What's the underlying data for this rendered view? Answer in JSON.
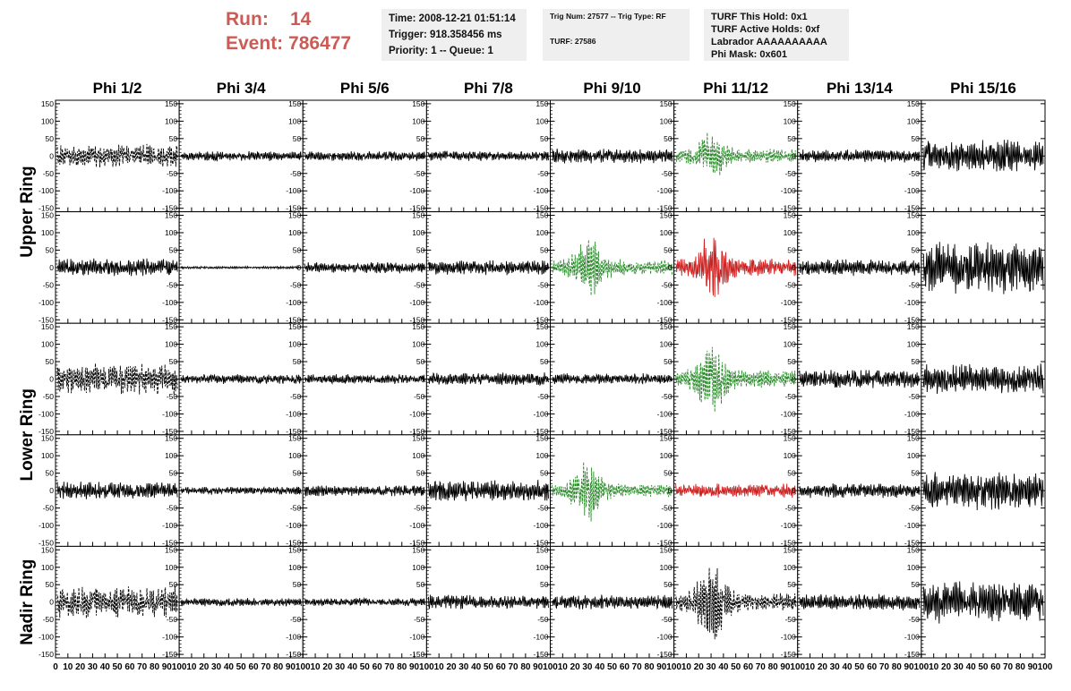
{
  "header": {
    "run_label": "Run:",
    "run_value": "14",
    "event_label": "Event:",
    "event_value": "786477",
    "time": "Time: 2008-12-21 01:51:14",
    "trigger": "Trigger: 918.358456 ms",
    "priority": "Priority: 1 -- Queue: 1",
    "trig_num": "Trig Num: 27577 -- Trig Type: RF",
    "turf": "TURF: 27586",
    "turf_this_hold": "TURF This Hold: 0x1",
    "turf_active_holds": "TURF Active Holds: 0xf",
    "labrador": "Labrador AAAAAAAAAA",
    "phi_mask": "Phi Mask: 0x601"
  },
  "colors": {
    "header_accent": "#cc5a55",
    "trace_default": "#000000",
    "trace_green": "#2a8a2a",
    "trace_red": "#cc2222"
  },
  "chart_data": {
    "type": "line",
    "columns": [
      "Phi 1/2",
      "Phi 3/4",
      "Phi 5/6",
      "Phi 7/8",
      "Phi 9/10",
      "Phi 11/12",
      "Phi 13/14",
      "Phi 15/16"
    ],
    "row_groups": [
      "Upper Ring",
      "Lower Ring",
      "Nadir Ring"
    ],
    "ylim": [
      -160,
      160
    ],
    "xlim": [
      0,
      100
    ],
    "yticks": [
      -150,
      -100,
      -50,
      0,
      50,
      100,
      150
    ],
    "ytick_labels": [
      "-150",
      "-100",
      "-50",
      "0",
      "50",
      "100",
      "150"
    ],
    "xtick_labels_first": [
      "0",
      "10",
      "20",
      "30",
      "40",
      "50",
      "60",
      "70",
      "80",
      "90",
      "100"
    ],
    "xtick_labels_rest": [
      "10",
      "20",
      "30",
      "40",
      "50",
      "60",
      "70",
      "80",
      "90",
      "100"
    ],
    "xticks": [
      0,
      10,
      20,
      30,
      40,
      50,
      60,
      70,
      80,
      90,
      100
    ],
    "panels": [
      [
        {
          "amp": 30,
          "style": "dashed",
          "color": "black",
          "burst": 0,
          "seed": 11
        },
        {
          "amp": 12,
          "style": "solid",
          "color": "black",
          "burst": 0,
          "seed": 12
        },
        {
          "amp": 12,
          "style": "solid",
          "color": "black",
          "burst": 0,
          "seed": 13
        },
        {
          "amp": 12,
          "style": "solid",
          "color": "black",
          "burst": 0,
          "seed": 14
        },
        {
          "amp": 18,
          "style": "solid",
          "color": "black",
          "burst": 0,
          "seed": 15
        },
        {
          "amp": 18,
          "style": "dashed",
          "color": "green",
          "burst": 45,
          "seed": 16
        },
        {
          "amp": 16,
          "style": "solid",
          "color": "black",
          "burst": 0,
          "seed": 17
        },
        {
          "amp": 40,
          "style": "solid",
          "color": "black",
          "burst": 0,
          "seed": 18
        }
      ],
      [
        {
          "amp": 22,
          "style": "solid",
          "color": "black",
          "burst": 0,
          "seed": 21
        },
        {
          "amp": 3,
          "style": "solid",
          "color": "black",
          "burst": 0,
          "seed": 22
        },
        {
          "amp": 14,
          "style": "solid",
          "color": "black",
          "burst": 0,
          "seed": 23
        },
        {
          "amp": 18,
          "style": "solid",
          "color": "black",
          "burst": 0,
          "seed": 24
        },
        {
          "amp": 20,
          "style": "dashed",
          "color": "green",
          "burst": 60,
          "seed": 25
        },
        {
          "amp": 22,
          "style": "solid",
          "color": "red",
          "burst": 70,
          "seed": 26
        },
        {
          "amp": 20,
          "style": "solid",
          "color": "black",
          "burst": 0,
          "seed": 27
        },
        {
          "amp": 65,
          "style": "solid",
          "color": "black",
          "burst": 0,
          "seed": 28
        }
      ],
      [
        {
          "amp": 38,
          "style": "dashed",
          "color": "black",
          "burst": 0,
          "seed": 31
        },
        {
          "amp": 12,
          "style": "solid",
          "color": "black",
          "burst": 0,
          "seed": 32
        },
        {
          "amp": 12,
          "style": "solid",
          "color": "black",
          "burst": 0,
          "seed": 33
        },
        {
          "amp": 16,
          "style": "solid",
          "color": "black",
          "burst": 0,
          "seed": 34
        },
        {
          "amp": 14,
          "style": "solid",
          "color": "black",
          "burst": 0,
          "seed": 35
        },
        {
          "amp": 22,
          "style": "dashed",
          "color": "green",
          "burst": 80,
          "seed": 36
        },
        {
          "amp": 22,
          "style": "solid",
          "color": "black",
          "burst": 0,
          "seed": 37
        },
        {
          "amp": 38,
          "style": "solid",
          "color": "black",
          "burst": 0,
          "seed": 38
        }
      ],
      [
        {
          "amp": 22,
          "style": "solid",
          "color": "black",
          "burst": 0,
          "seed": 41
        },
        {
          "amp": 10,
          "style": "solid",
          "color": "black",
          "burst": 0,
          "seed": 42
        },
        {
          "amp": 14,
          "style": "solid",
          "color": "black",
          "burst": 0,
          "seed": 43
        },
        {
          "amp": 26,
          "style": "solid",
          "color": "black",
          "burst": 0,
          "seed": 44
        },
        {
          "amp": 16,
          "style": "dashed",
          "color": "green",
          "burst": 70,
          "seed": 45
        },
        {
          "amp": 18,
          "style": "solid",
          "color": "red",
          "burst": 0,
          "seed": 46
        },
        {
          "amp": 18,
          "style": "solid",
          "color": "black",
          "burst": 0,
          "seed": 47
        },
        {
          "amp": 48,
          "style": "solid",
          "color": "black",
          "burst": 0,
          "seed": 48
        }
      ],
      [
        {
          "amp": 40,
          "style": "dashed",
          "color": "black",
          "burst": 0,
          "seed": 51
        },
        {
          "amp": 10,
          "style": "solid",
          "color": "black",
          "burst": 0,
          "seed": 52
        },
        {
          "amp": 10,
          "style": "solid",
          "color": "black",
          "burst": 0,
          "seed": 53
        },
        {
          "amp": 18,
          "style": "solid",
          "color": "black",
          "burst": 0,
          "seed": 54
        },
        {
          "amp": 18,
          "style": "solid",
          "color": "black",
          "burst": 0,
          "seed": 55
        },
        {
          "amp": 22,
          "style": "dashed",
          "color": "black",
          "burst": 90,
          "seed": 56
        },
        {
          "amp": 20,
          "style": "solid",
          "color": "black",
          "burst": 0,
          "seed": 57
        },
        {
          "amp": 52,
          "style": "solid",
          "color": "black",
          "burst": 0,
          "seed": 58
        }
      ]
    ]
  }
}
